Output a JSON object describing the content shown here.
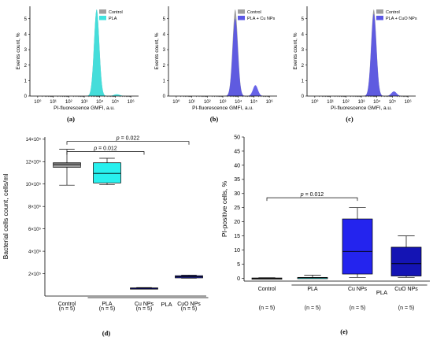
{
  "panel_labels": [
    "(a)",
    "(b)",
    "(c)",
    "(d)",
    "(e)"
  ],
  "colors": {
    "control": "#9e9e9e",
    "pla": "#3ee3e0",
    "pla_cu": "#5a56e6",
    "pla_cuo": "#5a56e6",
    "box_control": "#7f7f7f",
    "box_pla": "#28f0ee",
    "box_cu_d": "#1414d2",
    "box_cuo_d": "#2a2fb8",
    "box_cu_e": "#2424ee",
    "box_cuo_e": "#1414b4"
  },
  "chart_data": [
    {
      "id": "a",
      "type": "area",
      "xlabel": "PI-fluorescence GMFI, a.u.",
      "ylabel": "Events count, %",
      "x_scale": "log",
      "x_ticks": [
        "10⁰",
        "10¹",
        "10²",
        "10³",
        "10⁴",
        "10⁵",
        "10⁶"
      ],
      "y_ticks": [
        "0",
        "1",
        "2",
        "3",
        "4",
        "5"
      ],
      "ylim": [
        0,
        5.8
      ],
      "legend_position": "top-right",
      "legend": [
        "Control",
        "PLA"
      ],
      "series": [
        {
          "name": "Control",
          "peaks": [
            {
              "log_x": 3.8,
              "height": 5.6,
              "width": 0.17
            }
          ]
        },
        {
          "name": "PLA",
          "peaks": [
            {
              "log_x": 3.8,
              "height": 5.6,
              "width": 0.17
            },
            {
              "log_x": 5.1,
              "height": 0.12,
              "width": 0.2
            }
          ]
        }
      ]
    },
    {
      "id": "b",
      "type": "area",
      "xlabel": "PI-fluorescence GMFI, a.u.",
      "ylabel": "Events count, %",
      "x_scale": "log",
      "x_ticks": [
        "10⁰",
        "10¹",
        "10²",
        "10³",
        "10⁴",
        "10⁵",
        "10⁶"
      ],
      "y_ticks": [
        "0",
        "1",
        "2",
        "3",
        "4",
        "5"
      ],
      "ylim": [
        0,
        5.8
      ],
      "legend_position": "top-right",
      "legend": [
        "Control",
        "PLA + Cu NPs"
      ],
      "series": [
        {
          "name": "Control",
          "peaks": [
            {
              "log_x": 3.8,
              "height": 5.6,
              "width": 0.17
            }
          ]
        },
        {
          "name": "PLA + Cu NPs",
          "peaks": [
            {
              "log_x": 3.8,
              "height": 5.0,
              "width": 0.17
            },
            {
              "log_x": 5.1,
              "height": 0.7,
              "width": 0.16
            }
          ]
        }
      ]
    },
    {
      "id": "c",
      "type": "area",
      "xlabel": "PI-fluorescence GMFI, a.u.",
      "ylabel": "Events count, %",
      "x_scale": "log",
      "x_ticks": [
        "10⁰",
        "10¹",
        "10²",
        "10³",
        "10⁴",
        "10⁵",
        "10⁶"
      ],
      "y_ticks": [
        "0",
        "1",
        "2",
        "3",
        "4",
        "5"
      ],
      "ylim": [
        0,
        5.8
      ],
      "legend_position": "top-right",
      "legend": [
        "Control",
        "PLA + CuO NPs"
      ],
      "series": [
        {
          "name": "Control",
          "peaks": [
            {
              "log_x": 3.8,
              "height": 5.6,
              "width": 0.17
            }
          ]
        },
        {
          "name": "PLA + CuO NPs",
          "peaks": [
            {
              "log_x": 3.8,
              "height": 5.3,
              "width": 0.17
            },
            {
              "log_x": 5.1,
              "height": 0.3,
              "width": 0.17
            }
          ]
        }
      ]
    },
    {
      "id": "d",
      "type": "box",
      "ylabel": "Bacterial cells count, cells/ml",
      "y_ticks": [
        {
          "value": 200000,
          "label": "2×10⁵"
        },
        {
          "value": 400000,
          "label": "4×10⁵"
        },
        {
          "value": 600000,
          "label": "6×10⁵"
        },
        {
          "value": 800000,
          "label": "8×10⁵"
        },
        {
          "value": 1000000,
          "label": "10×10⁵"
        },
        {
          "value": 1200000,
          "label": "12×10⁵"
        },
        {
          "value": 1400000,
          "label": "14×10⁵"
        }
      ],
      "ylim": [
        0,
        1420000
      ],
      "categories": [
        "Control",
        "PLA",
        "Cu NPs",
        "CuO NPs"
      ],
      "group_label": "PLA",
      "n_labels": [
        "(n = 5)",
        "(n = 5)",
        "(n = 5)",
        "(n = 5)"
      ],
      "boxes": [
        {
          "min": 990000,
          "q1": 1150000,
          "median": 1175000,
          "q3": 1190000,
          "max": 1310000
        },
        {
          "min": 995000,
          "q1": 1010000,
          "median": 1095000,
          "q3": 1190000,
          "max": 1230000
        },
        {
          "min": 65000,
          "q1": 68000,
          "median": 70000,
          "q3": 73000,
          "max": 76000
        },
        {
          "min": 160000,
          "q1": 162000,
          "median": 172000,
          "q3": 182000,
          "max": 187000
        }
      ],
      "annotations": [
        {
          "text": "p = 0.022",
          "from": 0,
          "to": 3,
          "y": 1380000
        },
        {
          "text": "p = 0.012",
          "from": 0,
          "to": 2,
          "y": 1290000
        }
      ]
    },
    {
      "id": "e",
      "type": "box",
      "ylabel": "PI-positive cells, %",
      "y_ticks": [
        {
          "value": 0,
          "label": "0"
        },
        {
          "value": 5,
          "label": "5"
        },
        {
          "value": 10,
          "label": "10"
        },
        {
          "value": 15,
          "label": "15"
        },
        {
          "value": 20,
          "label": "20"
        },
        {
          "value": 25,
          "label": "25"
        },
        {
          "value": 30,
          "label": "30"
        },
        {
          "value": 35,
          "label": "35"
        },
        {
          "value": 40,
          "label": "40"
        },
        {
          "value": 45,
          "label": "45"
        },
        {
          "value": 50,
          "label": "50"
        }
      ],
      "ylim": [
        -1,
        50
      ],
      "categories": [
        "Control",
        "PLA",
        "Cu NPs",
        "CuO NPs"
      ],
      "group_label": "PLA",
      "n_labels": [
        "(n = 5)",
        "(n = 5)",
        "(n = 5)",
        "(n = 5)"
      ],
      "boxes": [
        {
          "min": 0,
          "q1": 0,
          "median": 0,
          "q3": 0.1,
          "max": 0.2
        },
        {
          "min": 0,
          "q1": 0.1,
          "median": 0.2,
          "q3": 0.3,
          "max": 1.1
        },
        {
          "min": 0.3,
          "q1": 1.5,
          "median": 9.5,
          "q3": 21,
          "max": 25
        },
        {
          "min": 0.3,
          "q1": 0.8,
          "median": 5.2,
          "q3": 11,
          "max": 15
        }
      ],
      "annotations": [
        {
          "text": "p = 0.012",
          "from": 0,
          "to": 2,
          "y": 28.5
        }
      ]
    }
  ]
}
